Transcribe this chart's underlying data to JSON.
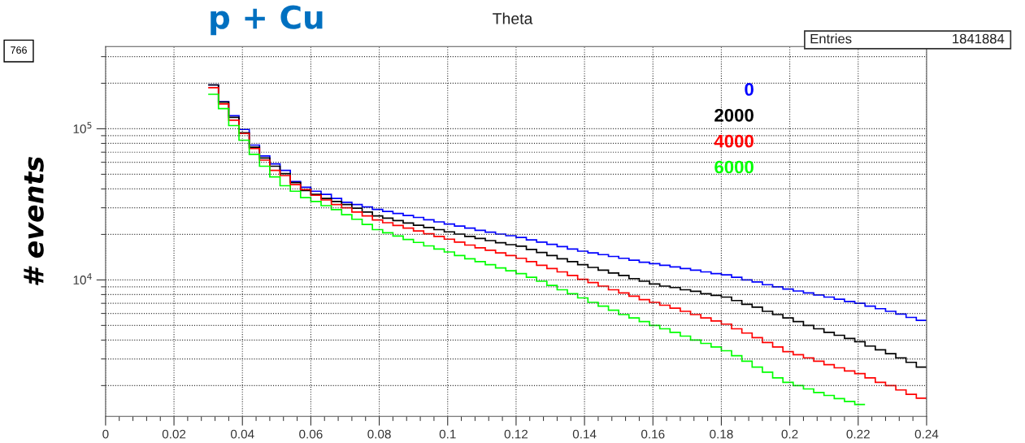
{
  "chart_data": {
    "type": "histogram",
    "title": "Theta",
    "ylabel": "# events",
    "annotations": [
      "p + Cu",
      "766",
      "Entries",
      "1841884"
    ],
    "bins": [
      0.03,
      0.033,
      0.036,
      0.039,
      0.042,
      0.045,
      0.048,
      0.051,
      0.054,
      0.057,
      0.06,
      0.063,
      0.066,
      0.069,
      0.072,
      0.075,
      0.078,
      0.081,
      0.084,
      0.087,
      0.09,
      0.093,
      0.096,
      0.099,
      0.102,
      0.105,
      0.108,
      0.111,
      0.114,
      0.117,
      0.12,
      0.123,
      0.126,
      0.129,
      0.132,
      0.135,
      0.138,
      0.141,
      0.144,
      0.147,
      0.15,
      0.153,
      0.156,
      0.159,
      0.162,
      0.165,
      0.168,
      0.171,
      0.174,
      0.177,
      0.18,
      0.183,
      0.186,
      0.189,
      0.192,
      0.195,
      0.198,
      0.201,
      0.204,
      0.207,
      0.21,
      0.213,
      0.216,
      0.219,
      0.222,
      0.225,
      0.228,
      0.231,
      0.234,
      0.237,
      0.24
    ],
    "series": [
      {
        "name": "0",
        "color": "#0000ff",
        "values": [
          195000,
          151000,
          122000,
          99000,
          78000,
          66000,
          58500,
          53000,
          44700,
          41000,
          38600,
          36800,
          34600,
          32600,
          31500,
          30400,
          29300,
          28400,
          27500,
          26700,
          25900,
          25000,
          24200,
          23400,
          22700,
          22000,
          21300,
          20700,
          20100,
          19600,
          19100,
          18400,
          17800,
          17200,
          16600,
          16000,
          15500,
          15100,
          14700,
          14300,
          13900,
          13500,
          13100,
          12800,
          12500,
          12200,
          11900,
          11600,
          11300,
          11000,
          10800,
          10400,
          10000,
          9700,
          9300,
          9000,
          8700,
          8450,
          8200,
          7950,
          7700,
          7450,
          7200,
          7000,
          6700,
          6450,
          6200,
          5950,
          5650,
          5400
        ]
      },
      {
        "name": "2000",
        "color": "#000000",
        "values": [
          195000,
          150000,
          119000,
          94000,
          75500,
          64000,
          56500,
          50500,
          44000,
          39000,
          36800,
          34600,
          33000,
          31500,
          29800,
          28100,
          26500,
          25600,
          24700,
          23800,
          23000,
          22200,
          21500,
          20800,
          20100,
          19400,
          18800,
          18200,
          17600,
          17100,
          16700,
          15900,
          15200,
          14500,
          13800,
          13200,
          12600,
          12100,
          11600,
          11100,
          10700,
          10200,
          9800,
          9400,
          9100,
          8900,
          8600,
          8400,
          8100,
          7900,
          7700,
          7300,
          6900,
          6600,
          6200,
          5900,
          5600,
          5300,
          5000,
          4750,
          4500,
          4300,
          4100,
          3900,
          3650,
          3450,
          3250,
          3050,
          2850,
          2650
        ]
      },
      {
        "name": "4000",
        "color": "#ff0000",
        "values": [
          187000,
          146000,
          114000,
          93000,
          74000,
          62000,
          53000,
          49000,
          42700,
          39600,
          36300,
          33800,
          31500,
          30000,
          28100,
          26500,
          24900,
          23900,
          22900,
          22000,
          21100,
          20200,
          19400,
          18600,
          17800,
          17000,
          16300,
          15700,
          15100,
          14500,
          13900,
          13200,
          12500,
          11900,
          11300,
          10700,
          10100,
          9600,
          9100,
          8600,
          8200,
          7800,
          7400,
          7100,
          6800,
          6500,
          6200,
          5900,
          5600,
          5350,
          5100,
          4750,
          4450,
          4150,
          3850,
          3600,
          3350,
          3200,
          3050,
          2900,
          2750,
          2620,
          2500,
          2400,
          2250,
          2100,
          2000,
          1870,
          1750,
          1650
        ]
      },
      {
        "name": "6000",
        "color": "#00ff00",
        "values": [
          169000,
          136000,
          105000,
          84000,
          67700,
          56500,
          48000,
          42000,
          38600,
          35000,
          33000,
          31000,
          29200,
          27000,
          25200,
          23300,
          21500,
          20500,
          19500,
          18500,
          17700,
          16800,
          16000,
          15300,
          14500,
          13800,
          13200,
          12600,
          12000,
          11500,
          11000,
          10400,
          9800,
          9200,
          8600,
          8100,
          7600,
          7100,
          6700,
          6300,
          5900,
          5600,
          5300,
          5000,
          4750,
          4500,
          4250,
          4000,
          3800,
          3600,
          3400,
          3150,
          2900,
          2650,
          2450,
          2250,
          2100,
          2000,
          1900,
          1800,
          1720,
          1640,
          1570,
          1500
        ],
        "bins": [
          0.03,
          0.033,
          0.036,
          0.039,
          0.042,
          0.045,
          0.048,
          0.051,
          0.054,
          0.057,
          0.06,
          0.063,
          0.066,
          0.069,
          0.072,
          0.075,
          0.078,
          0.081,
          0.084,
          0.087,
          0.09,
          0.093,
          0.096,
          0.099,
          0.102,
          0.105,
          0.108,
          0.111,
          0.114,
          0.117,
          0.12,
          0.123,
          0.126,
          0.129,
          0.132,
          0.135,
          0.138,
          0.141,
          0.144,
          0.147,
          0.15,
          0.153,
          0.156,
          0.159,
          0.162,
          0.165,
          0.168,
          0.171,
          0.174,
          0.177,
          0.18,
          0.183,
          0.186,
          0.189,
          0.192,
          0.195,
          0.198,
          0.201,
          0.204,
          0.207,
          0.21,
          0.213,
          0.216,
          0.219,
          0.222
        ]
      }
    ],
    "log": "y",
    "xlim": [
      0,
      0.24
    ],
    "ylim": [
      1250,
      350000
    ],
    "xticks": [
      0,
      0.02,
      0.04,
      0.06,
      0.08,
      {
        "value": 0.1,
        "label": "0.1"
      },
      0.12,
      0.14,
      0.16,
      0.18,
      {
        "value": 0.2,
        "label": "0.2"
      },
      0.22,
      0.24
    ],
    "yticks": [
      {
        "value": 10000,
        "label": "10$^{4}$"
      },
      {
        "value": 100000,
        "label": "10$^{5}$"
      }
    ],
    "grid": true
  }
}
